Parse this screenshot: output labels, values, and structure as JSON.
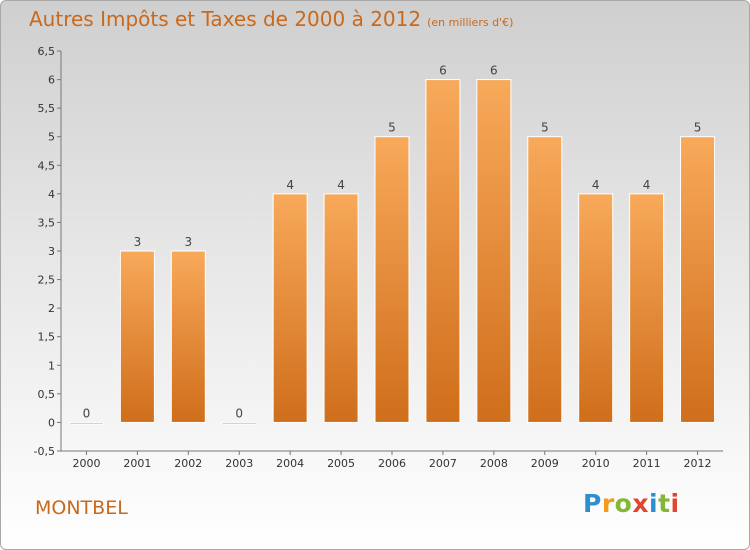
{
  "header": {
    "title": "Autres Impôts et Taxes de 2000 à 2012",
    "subtitle": "(en milliers d'€)"
  },
  "footer": {
    "place": "MONTBEL",
    "logo": "Proxiti"
  },
  "colors": {
    "title": "#c8691c",
    "bar_top": "#f8a95a",
    "bar_bottom": "#cf6e1b",
    "bar_edge": "#ffffff"
  },
  "chart_data": {
    "type": "bar",
    "title": "Autres Impôts et Taxes de 2000 à 2012",
    "subtitle": "(en milliers d'€)",
    "categories": [
      "2000",
      "2001",
      "2002",
      "2003",
      "2004",
      "2005",
      "2006",
      "2007",
      "2008",
      "2009",
      "2010",
      "2011",
      "2012"
    ],
    "values": [
      0,
      3,
      3,
      0,
      4,
      4,
      5,
      6,
      6,
      5,
      4,
      4,
      5
    ],
    "value_labels": [
      "0",
      "3",
      "3",
      "0",
      "4",
      "4",
      "5",
      "6",
      "6",
      "5",
      "4",
      "4",
      "5"
    ],
    "ylim": [
      -0.5,
      6.5
    ],
    "yticks": [
      "-0,5",
      "0",
      "0,5",
      "1",
      "1,5",
      "2",
      "2,5",
      "3",
      "3,5",
      "4",
      "4,5",
      "5",
      "5,5",
      "6",
      "6,5"
    ],
    "ytick_values": [
      -0.5,
      0,
      0.5,
      1,
      1.5,
      2,
      2.5,
      3,
      3.5,
      4,
      4.5,
      5,
      5.5,
      6,
      6.5
    ],
    "grid": false,
    "legend": "none"
  }
}
